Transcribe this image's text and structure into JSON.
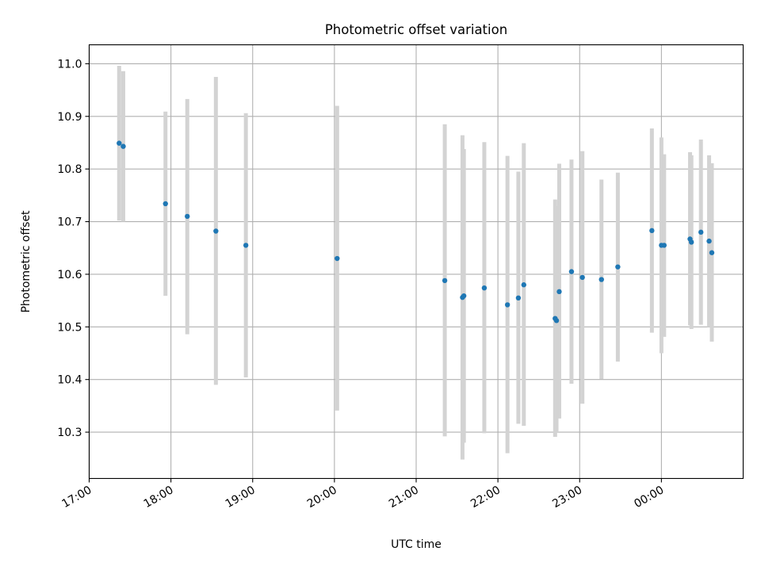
{
  "chart_data": {
    "type": "scatter",
    "title": "Photometric offset variation",
    "xlabel": "UTC time",
    "ylabel": "Photometric offset",
    "x_range": [
      "2000-01-01T17:00",
      "2000-01-02T01:00"
    ],
    "ylim": [
      10.212,
      11.036
    ],
    "grid": true,
    "x_ticks": [
      {
        "t": "2000-01-01T17:00",
        "label": "17:00"
      },
      {
        "t": "2000-01-01T18:00",
        "label": "18:00"
      },
      {
        "t": "2000-01-01T19:00",
        "label": "19:00"
      },
      {
        "t": "2000-01-01T20:00",
        "label": "20:00"
      },
      {
        "t": "2000-01-01T21:00",
        "label": "21:00"
      },
      {
        "t": "2000-01-01T22:00",
        "label": "22:00"
      },
      {
        "t": "2000-01-01T23:00",
        "label": "23:00"
      },
      {
        "t": "2000-01-02T00:00",
        "label": "00:00"
      }
    ],
    "y_ticks": [
      {
        "v": 10.3,
        "label": "10.3"
      },
      {
        "v": 10.4,
        "label": "10.4"
      },
      {
        "v": 10.5,
        "label": "10.5"
      },
      {
        "v": 10.6,
        "label": "10.6"
      },
      {
        "v": 10.7,
        "label": "10.7"
      },
      {
        "v": 10.8,
        "label": "10.8"
      },
      {
        "v": 10.9,
        "label": "10.9"
      },
      {
        "v": 11.0,
        "label": "11.0"
      }
    ],
    "point_color": "#1f77b4",
    "errorbar_color": "#d3d3d3",
    "points": [
      {
        "t": "2000-01-01T17:22",
        "y": 10.849,
        "y_low": 10.702,
        "y_high": 10.996
      },
      {
        "t": "2000-01-01T17:25",
        "y": 10.843,
        "y_low": 10.7,
        "y_high": 10.986
      },
      {
        "t": "2000-01-01T17:56",
        "y": 10.734,
        "y_low": 10.559,
        "y_high": 10.909
      },
      {
        "t": "2000-01-01T18:12",
        "y": 10.71,
        "y_low": 10.486,
        "y_high": 10.933
      },
      {
        "t": "2000-01-01T18:33",
        "y": 10.682,
        "y_low": 10.39,
        "y_high": 10.975
      },
      {
        "t": "2000-01-01T18:55",
        "y": 10.655,
        "y_low": 10.404,
        "y_high": 10.906
      },
      {
        "t": "2000-01-01T20:02",
        "y": 10.63,
        "y_low": 10.341,
        "y_high": 10.92
      },
      {
        "t": "2000-01-01T21:21",
        "y": 10.588,
        "y_low": 10.292,
        "y_high": 10.885
      },
      {
        "t": "2000-01-01T21:34",
        "y": 10.556,
        "y_low": 10.248,
        "y_high": 10.864
      },
      {
        "t": "2000-01-01T21:35",
        "y": 10.559,
        "y_low": 10.28,
        "y_high": 10.838
      },
      {
        "t": "2000-01-01T21:50",
        "y": 10.574,
        "y_low": 10.298,
        "y_high": 10.851
      },
      {
        "t": "2000-01-01T22:07",
        "y": 10.542,
        "y_low": 10.26,
        "y_high": 10.825
      },
      {
        "t": "2000-01-01T22:15",
        "y": 10.555,
        "y_low": 10.316,
        "y_high": 10.795
      },
      {
        "t": "2000-01-01T22:19",
        "y": 10.58,
        "y_low": 10.312,
        "y_high": 10.849
      },
      {
        "t": "2000-01-01T22:42",
        "y": 10.516,
        "y_low": 10.291,
        "y_high": 10.742
      },
      {
        "t": "2000-01-01T22:43",
        "y": 10.512,
        "y_low": 10.3,
        "y_high": 10.73
      },
      {
        "t": "2000-01-01T22:45",
        "y": 10.567,
        "y_low": 10.326,
        "y_high": 10.81
      },
      {
        "t": "2000-01-01T22:54",
        "y": 10.605,
        "y_low": 10.392,
        "y_high": 10.818
      },
      {
        "t": "2000-01-01T23:02",
        "y": 10.594,
        "y_low": 10.354,
        "y_high": 10.834
      },
      {
        "t": "2000-01-01T23:16",
        "y": 10.59,
        "y_low": 10.401,
        "y_high": 10.78
      },
      {
        "t": "2000-01-01T23:28",
        "y": 10.614,
        "y_low": 10.434,
        "y_high": 10.793
      },
      {
        "t": "2000-01-01T23:53",
        "y": 10.683,
        "y_low": 10.489,
        "y_high": 10.877
      },
      {
        "t": "2000-01-02T00:00",
        "y": 10.655,
        "y_low": 10.45,
        "y_high": 10.86
      },
      {
        "t": "2000-01-02T00:02",
        "y": 10.655,
        "y_low": 10.481,
        "y_high": 10.828
      },
      {
        "t": "2000-01-02T00:21",
        "y": 10.667,
        "y_low": 10.503,
        "y_high": 10.832
      },
      {
        "t": "2000-01-02T00:22",
        "y": 10.661,
        "y_low": 10.496,
        "y_high": 10.826
      },
      {
        "t": "2000-01-02T00:29",
        "y": 10.68,
        "y_low": 10.504,
        "y_high": 10.856
      },
      {
        "t": "2000-01-02T00:35",
        "y": 10.663,
        "y_low": 10.5,
        "y_high": 10.826
      },
      {
        "t": "2000-01-02T00:37",
        "y": 10.641,
        "y_low": 10.472,
        "y_high": 10.811
      }
    ]
  }
}
